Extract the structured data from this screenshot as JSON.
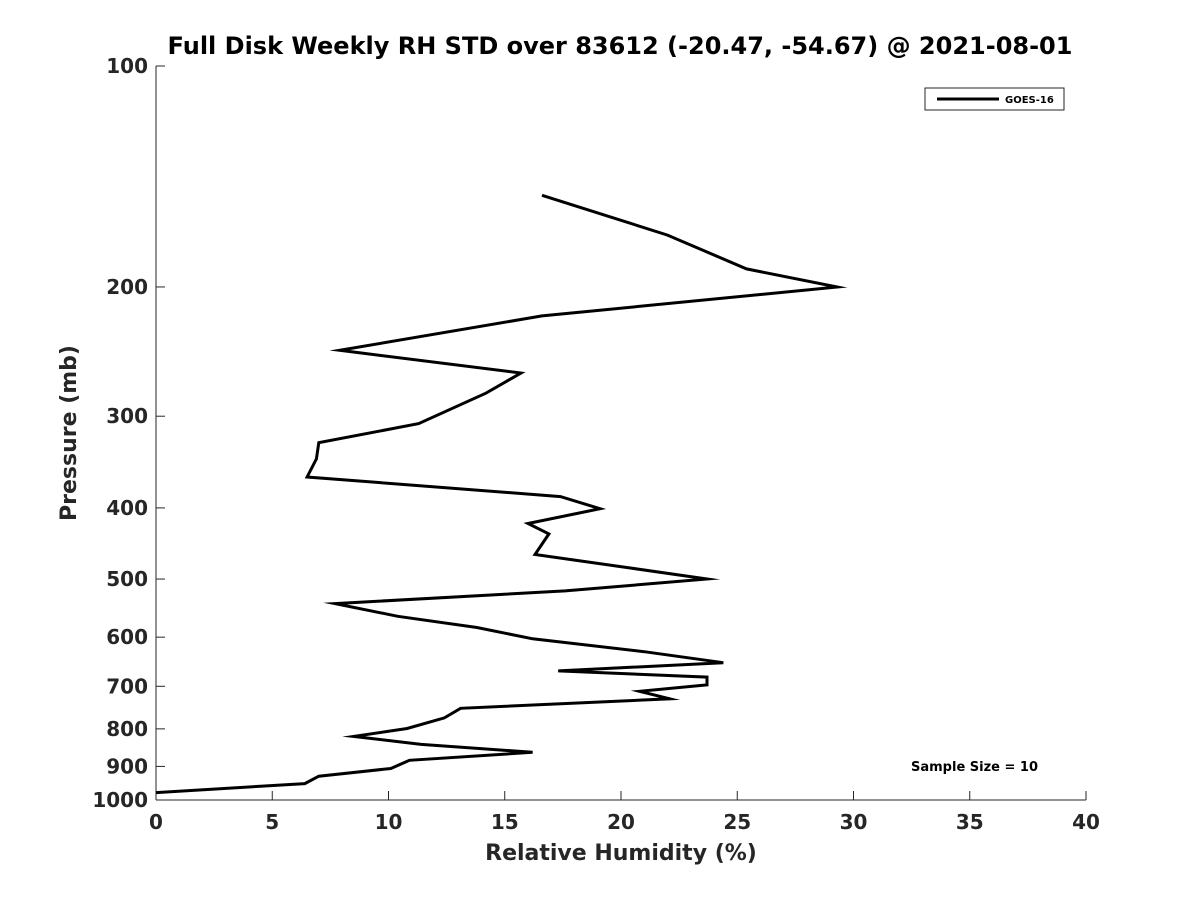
{
  "chart_data": {
    "type": "line",
    "title": "Full Disk Weekly RH STD over 83612 (-20.47, -54.67) @ 2021-08-01",
    "xlabel": "Relative Humidity (%)",
    "ylabel": "Pressure (mb)",
    "xlim": [
      0,
      40
    ],
    "ylim": [
      1000,
      100
    ],
    "yscale": "log",
    "grid": false,
    "xticks": [
      0,
      5,
      10,
      15,
      20,
      25,
      30,
      35,
      40
    ],
    "xtick_labels": [
      "0",
      "5",
      "10",
      "15",
      "20",
      "25",
      "30",
      "35",
      "40"
    ],
    "yticks": [
      100,
      200,
      300,
      400,
      500,
      600,
      700,
      800,
      900,
      1000
    ],
    "ytick_labels": [
      "100",
      "200",
      "300",
      "400",
      "500",
      "600",
      "700",
      "800",
      "900",
      "1000"
    ],
    "legend_position": "top-right",
    "series": [
      {
        "name": "GOES-16",
        "color": "#000000",
        "points": [
          [
            16.6,
            150
          ],
          [
            22.0,
            170
          ],
          [
            25.4,
            189
          ],
          [
            29.3,
            200
          ],
          [
            16.6,
            219
          ],
          [
            7.9,
            244
          ],
          [
            15.7,
            262
          ],
          [
            14.2,
            279
          ],
          [
            11.3,
            307
          ],
          [
            7.0,
            326
          ],
          [
            6.9,
            343
          ],
          [
            6.5,
            363
          ],
          [
            17.4,
            386
          ],
          [
            19.1,
            401
          ],
          [
            16.0,
            420
          ],
          [
            16.9,
            434
          ],
          [
            16.3,
            463
          ],
          [
            20.4,
            483
          ],
          [
            23.7,
            500
          ],
          [
            17.6,
            519
          ],
          [
            7.7,
            540
          ],
          [
            10.4,
            562
          ],
          [
            13.8,
            582
          ],
          [
            16.2,
            603
          ],
          [
            21.0,
            628
          ],
          [
            24.4,
            650
          ],
          [
            17.3,
            667
          ],
          [
            23.7,
            680
          ],
          [
            23.7,
            697
          ],
          [
            20.8,
            711
          ],
          [
            22.1,
            728
          ],
          [
            13.1,
            750
          ],
          [
            12.4,
            773
          ],
          [
            10.8,
            799
          ],
          [
            8.5,
            819
          ],
          [
            11.4,
            840
          ],
          [
            16.2,
            861
          ],
          [
            10.9,
            883
          ],
          [
            10.1,
            906
          ],
          [
            7.0,
            928
          ],
          [
            6.4,
            950
          ],
          [
            0.0,
            977
          ]
        ]
      }
    ],
    "annotations": [
      "Sample Size = 10"
    ]
  }
}
